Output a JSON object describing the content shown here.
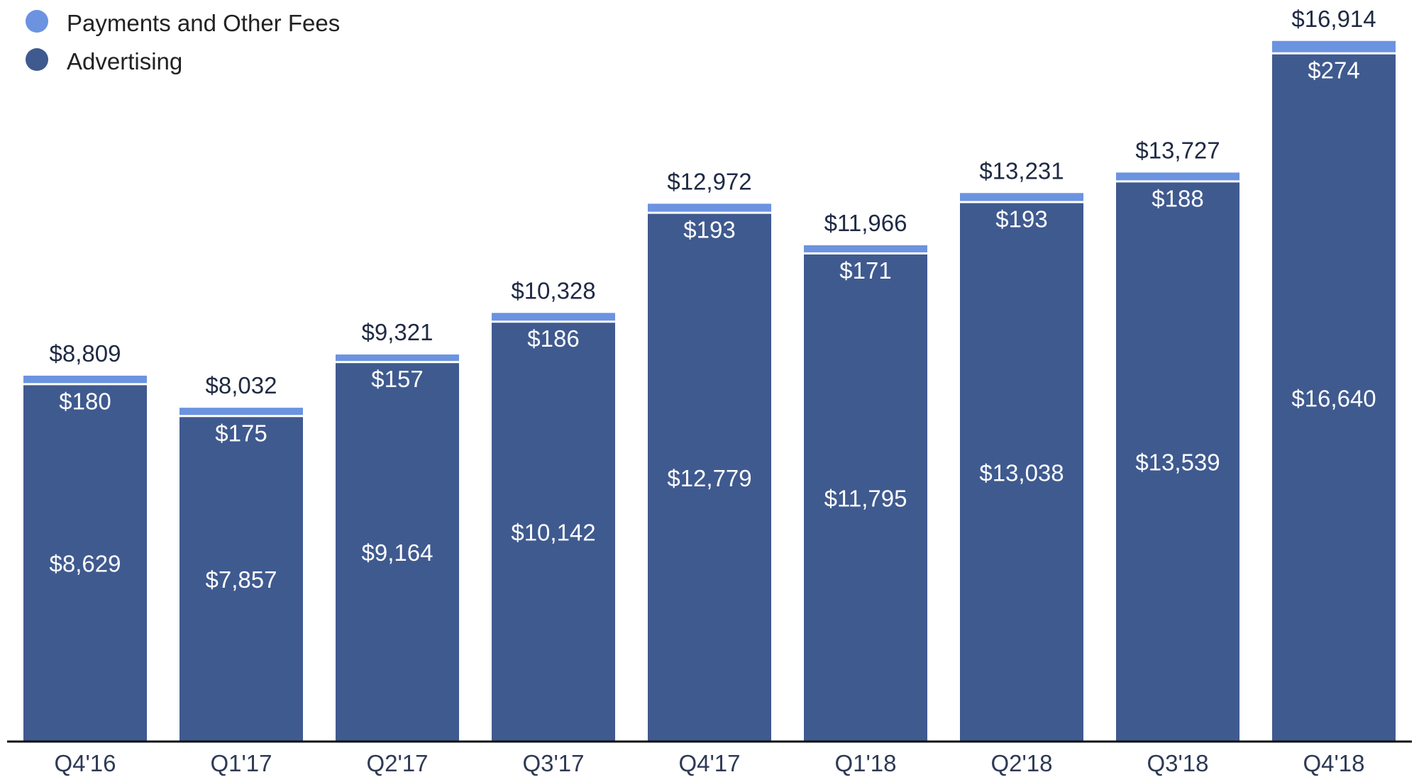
{
  "chart_data": {
    "type": "bar",
    "stacked": true,
    "title": "",
    "xlabel": "",
    "ylabel": "",
    "ylim": [
      0,
      17500
    ],
    "grid": false,
    "legend": "top-left",
    "categories": [
      "Q4'16",
      "Q1'17",
      "Q2'17",
      "Q3'17",
      "Q4'17",
      "Q1'18",
      "Q2'18",
      "Q3'18",
      "Q4'18"
    ],
    "series": [
      {
        "name": "Advertising",
        "color": "#3f5a8f",
        "values": [
          8629,
          7857,
          9164,
          10142,
          12779,
          11795,
          13038,
          13539,
          16640
        ],
        "labels": [
          "$8,629",
          "$7,857",
          "$9,164",
          "$10,142",
          "$12,779",
          "$11,795",
          "$13,038",
          "$13,539",
          "$16,640"
        ]
      },
      {
        "name": "Payments and Other Fees",
        "color": "#6b93e0",
        "values": [
          180,
          175,
          157,
          186,
          193,
          171,
          193,
          188,
          274
        ],
        "labels": [
          "$180",
          "$175",
          "$157",
          "$186",
          "$193",
          "$171",
          "$193",
          "$188",
          "$274"
        ]
      }
    ],
    "totals": [
      8809,
      8032,
      9321,
      10328,
      12972,
      11966,
      13231,
      13727,
      16914
    ],
    "total_labels": [
      "$8,809",
      "$8,032",
      "$9,321",
      "$10,328",
      "$12,972",
      "$11,966",
      "$13,231",
      "$13,727",
      "$16,914"
    ],
    "axis_color": "#111111"
  }
}
